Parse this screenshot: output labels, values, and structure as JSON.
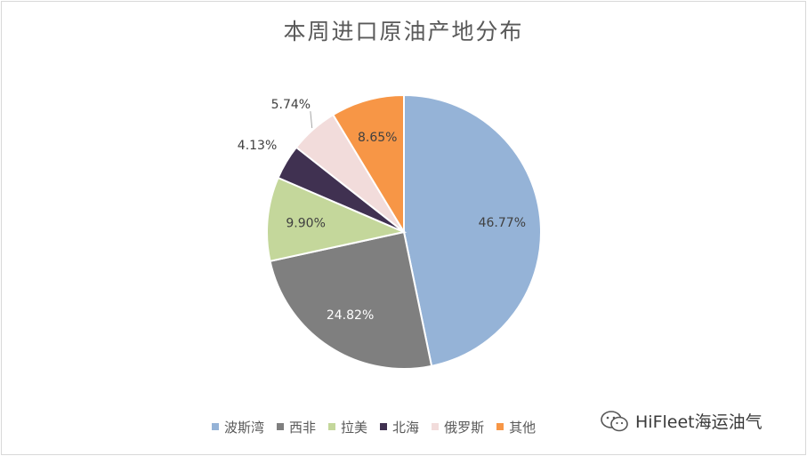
{
  "chart_data": {
    "type": "pie",
    "title": "本周进口原油产地分布",
    "categories": [
      "波斯湾",
      "西非",
      "拉美",
      "北海",
      "俄罗斯",
      "其他"
    ],
    "values": [
      46.77,
      24.82,
      9.9,
      4.13,
      5.74,
      8.65
    ],
    "labels": [
      "46.77%",
      "24.82%",
      "9.90%",
      "4.13%",
      "5.74%",
      "8.65%"
    ],
    "colors": [
      "#95b3d7",
      "#7f7f7f",
      "#c4d79b",
      "#403151",
      "#f2dcdb",
      "#f79646"
    ],
    "legend_position": "bottom"
  },
  "watermark": {
    "text": "HiFleet海运油气",
    "icon": "wechat-icon"
  }
}
